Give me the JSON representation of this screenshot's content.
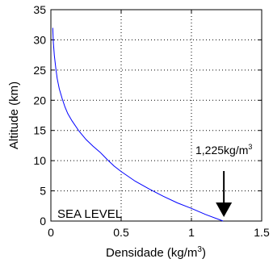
{
  "chart_data": {
    "type": "line",
    "xlabel": "Densidade (kg/m",
    "xlabel_sup": "3",
    "xlabel_close": ")",
    "ylabel": "Altitude (km)",
    "xlim": [
      0,
      1.5
    ],
    "ylim": [
      0,
      35
    ],
    "xticks": [
      0,
      0.5,
      1,
      1.5
    ],
    "xtick_labels": [
      "0",
      "0.5",
      "1",
      "1.5"
    ],
    "yticks": [
      0,
      5,
      10,
      15,
      20,
      25,
      30,
      35
    ],
    "ytick_labels": [
      "0",
      "5",
      "10",
      "15",
      "20",
      "25",
      "30",
      "35"
    ],
    "grid": true,
    "line_color": "#0000ff",
    "series": [
      {
        "x": [
          1.225,
          1.1,
          1.0,
          0.9,
          0.8,
          0.7,
          0.6,
          0.5,
          0.45,
          0.4,
          0.35,
          0.3,
          0.25,
          0.2,
          0.15,
          0.12,
          0.1,
          0.08,
          0.06,
          0.045,
          0.035,
          0.025,
          0.018,
          0.013
        ],
        "y": [
          0,
          1.1,
          2.1,
          3.0,
          4.1,
          5.3,
          6.6,
          8.2,
          9.1,
          10.2,
          11.4,
          12.4,
          13.5,
          14.9,
          16.6,
          17.8,
          18.9,
          20.3,
          21.9,
          23.6,
          25.3,
          27.4,
          29.5,
          32.0
        ]
      }
    ],
    "annotations": {
      "value_label": "1,225kg/m",
      "value_label_sup": "3",
      "sea_level": "SEA LEVEL"
    },
    "arrow_color": "#000000"
  }
}
